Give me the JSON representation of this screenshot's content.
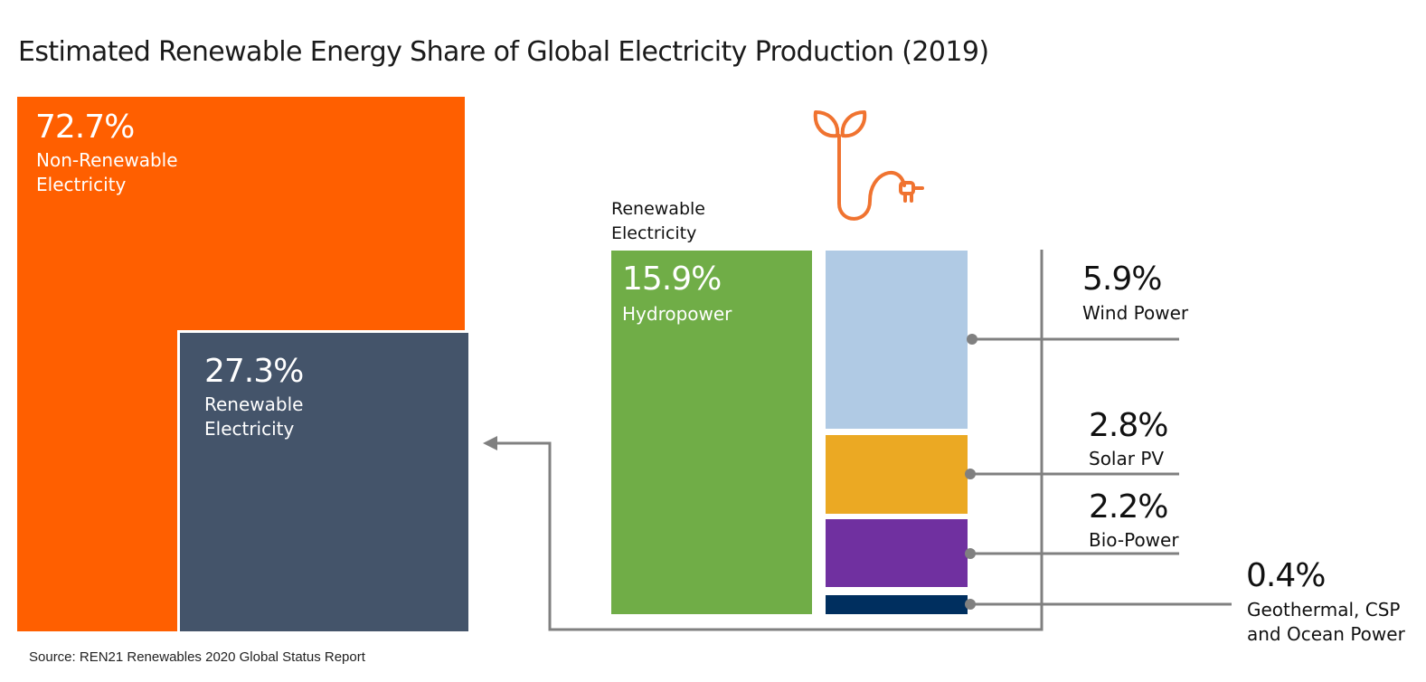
{
  "title": "Estimated Renewable Energy Share of Global Electricity Production (2019)",
  "source": "Source: REN21 Renewables 2020 Global Status Report",
  "renewable_header": [
    "Renewable",
    "Electricity"
  ],
  "colors": {
    "non_renewable": "#FF5F00",
    "renewable": "#44546A",
    "hydropower": "#70AD47",
    "wind": "#B0CAE4",
    "solar": "#EBA923",
    "bio": "#7030A0",
    "geothermal": "#002F5F",
    "lines": "#808080",
    "icon": "#F07330"
  },
  "icon": "plant-plug-icon",
  "chart_data": {
    "type": "treemap",
    "title": "Estimated Renewable Energy Share of Global Electricity Production (2019)",
    "unit": "% of global electricity production",
    "totals": [
      {
        "name": "Non-Renewable Electricity",
        "value": 72.7,
        "pct_label": "72.7%",
        "label_lines": [
          "Non-Renewable",
          "Electricity"
        ]
      },
      {
        "name": "Renewable Electricity",
        "value": 27.3,
        "pct_label": "27.3%",
        "label_lines": [
          "Renewable",
          "Electricity"
        ]
      }
    ],
    "renewable_breakdown": [
      {
        "name": "Hydropower",
        "value": 15.9,
        "pct_label": "15.9%",
        "label_lines": [
          "Hydropower"
        ]
      },
      {
        "name": "Wind Power",
        "value": 5.9,
        "pct_label": "5.9%",
        "label_lines": [
          "Wind Power"
        ]
      },
      {
        "name": "Solar PV",
        "value": 2.8,
        "pct_label": "2.8%",
        "label_lines": [
          "Solar PV"
        ]
      },
      {
        "name": "Bio-Power",
        "value": 2.2,
        "pct_label": "2.2%",
        "label_lines": [
          "Bio-Power"
        ]
      },
      {
        "name": "Geothermal, CSP and Ocean Power",
        "value": 0.4,
        "pct_label": "0.4%",
        "label_lines": [
          "Geothermal, CSP",
          "and Ocean Power"
        ]
      }
    ]
  }
}
